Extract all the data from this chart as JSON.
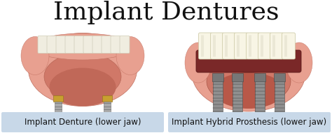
{
  "title": "Implant Dentures",
  "title_fontsize": 26,
  "title_font": "serif",
  "bg_color": "#ffffff",
  "label_bg_color": "#c8d8e8",
  "label1": "Implant Denture (lower jaw)",
  "label2": "Implant Hybrid Prosthesis (lower jaw)",
  "label_fontsize": 8.5,
  "label_font": "sans-serif",
  "label_color": "#111111",
  "fig_width": 4.74,
  "fig_height": 1.91,
  "dpi": 100,
  "gum_pink": "#e8a090",
  "gum_dark": "#d07868",
  "gum_mid": "#cc8878",
  "gum_shadow": "#c07060",
  "tooth_white": "#f0ede0",
  "tooth_edge": "#d0cdb8",
  "implant_metal": "#888888",
  "implant_dark": "#555555",
  "gold_top": "#c8a030",
  "prosthesis_gum": "#8b3030",
  "bone_pink": "#dda090"
}
